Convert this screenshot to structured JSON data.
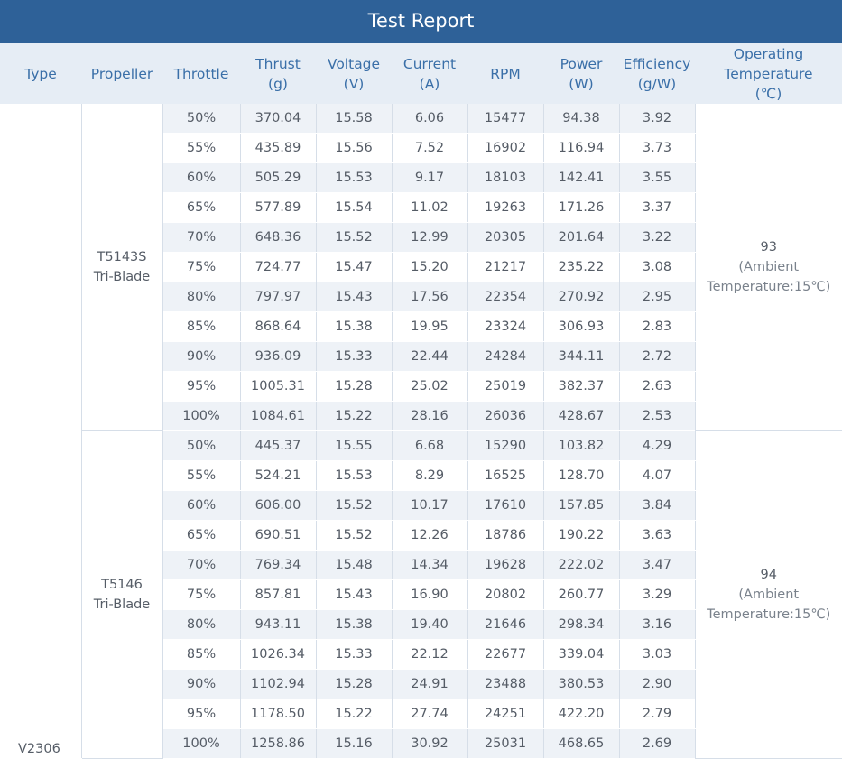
{
  "title": "Test Report",
  "headers": {
    "type": "Type",
    "propeller": "Propeller",
    "throttle": "Throttle",
    "thrust": "Thrust",
    "thrust_unit": "(g)",
    "voltage": "Voltage",
    "voltage_unit": "(V)",
    "current": "Current",
    "current_unit": "(A)",
    "rpm": "RPM",
    "power": "Power",
    "power_unit": "(W)",
    "efficiency": "Efficiency",
    "efficiency_unit": "(g/W)",
    "temp_line1": "Operating",
    "temp_line2": "Temperature",
    "temp_unit": "(℃)"
  },
  "type": "V2306",
  "groups": [
    {
      "propeller_line1": "T5143S",
      "propeller_line2": "Tri-Blade",
      "temp_value": "93",
      "temp_line2": "(Ambient",
      "temp_line3": "Temperature:15℃)",
      "rows": [
        [
          "50%",
          "370.04",
          "15.58",
          "6.06",
          "15477",
          "94.38",
          "3.92"
        ],
        [
          "55%",
          "435.89",
          "15.56",
          "7.52",
          "16902",
          "116.94",
          "3.73"
        ],
        [
          "60%",
          "505.29",
          "15.53",
          "9.17",
          "18103",
          "142.41",
          "3.55"
        ],
        [
          "65%",
          "577.89",
          "15.54",
          "11.02",
          "19263",
          "171.26",
          "3.37"
        ],
        [
          "70%",
          "648.36",
          "15.52",
          "12.99",
          "20305",
          "201.64",
          "3.22"
        ],
        [
          "75%",
          "724.77",
          "15.47",
          "15.20",
          "21217",
          "235.22",
          "3.08"
        ],
        [
          "80%",
          "797.97",
          "15.43",
          "17.56",
          "22354",
          "270.92",
          "2.95"
        ],
        [
          "85%",
          "868.64",
          "15.38",
          "19.95",
          "23324",
          "306.93",
          "2.83"
        ],
        [
          "90%",
          "936.09",
          "15.33",
          "22.44",
          "24284",
          "344.11",
          "2.72"
        ],
        [
          "95%",
          "1005.31",
          "15.28",
          "25.02",
          "25019",
          "382.37",
          "2.63"
        ],
        [
          "100%",
          "1084.61",
          "15.22",
          "28.16",
          "26036",
          "428.67",
          "2.53"
        ]
      ]
    },
    {
      "propeller_line1": "T5146",
      "propeller_line2": "Tri-Blade",
      "temp_value": "94",
      "temp_line2": "(Ambient",
      "temp_line3": "Temperature:15℃)",
      "rows": [
        [
          "50%",
          "445.37",
          "15.55",
          "6.68",
          "15290",
          "103.82",
          "4.29"
        ],
        [
          "55%",
          "524.21",
          "15.53",
          "8.29",
          "16525",
          "128.70",
          "4.07"
        ],
        [
          "60%",
          "606.00",
          "15.52",
          "10.17",
          "17610",
          "157.85",
          "3.84"
        ],
        [
          "65%",
          "690.51",
          "15.52",
          "12.26",
          "18786",
          "190.22",
          "3.63"
        ],
        [
          "70%",
          "769.34",
          "15.48",
          "14.34",
          "19628",
          "222.02",
          "3.47"
        ],
        [
          "75%",
          "857.81",
          "15.43",
          "16.90",
          "20802",
          "260.77",
          "3.29"
        ],
        [
          "80%",
          "943.11",
          "15.38",
          "19.40",
          "21646",
          "298.34",
          "3.16"
        ],
        [
          "85%",
          "1026.34",
          "15.33",
          "22.12",
          "22677",
          "339.04",
          "3.03"
        ],
        [
          "90%",
          "1102.94",
          "15.28",
          "24.91",
          "23488",
          "380.53",
          "2.90"
        ],
        [
          "95%",
          "1178.50",
          "15.22",
          "27.74",
          "24251",
          "422.20",
          "2.79"
        ],
        [
          "100%",
          "1258.86",
          "15.16",
          "30.92",
          "25031",
          "468.65",
          "2.69"
        ]
      ]
    }
  ]
}
